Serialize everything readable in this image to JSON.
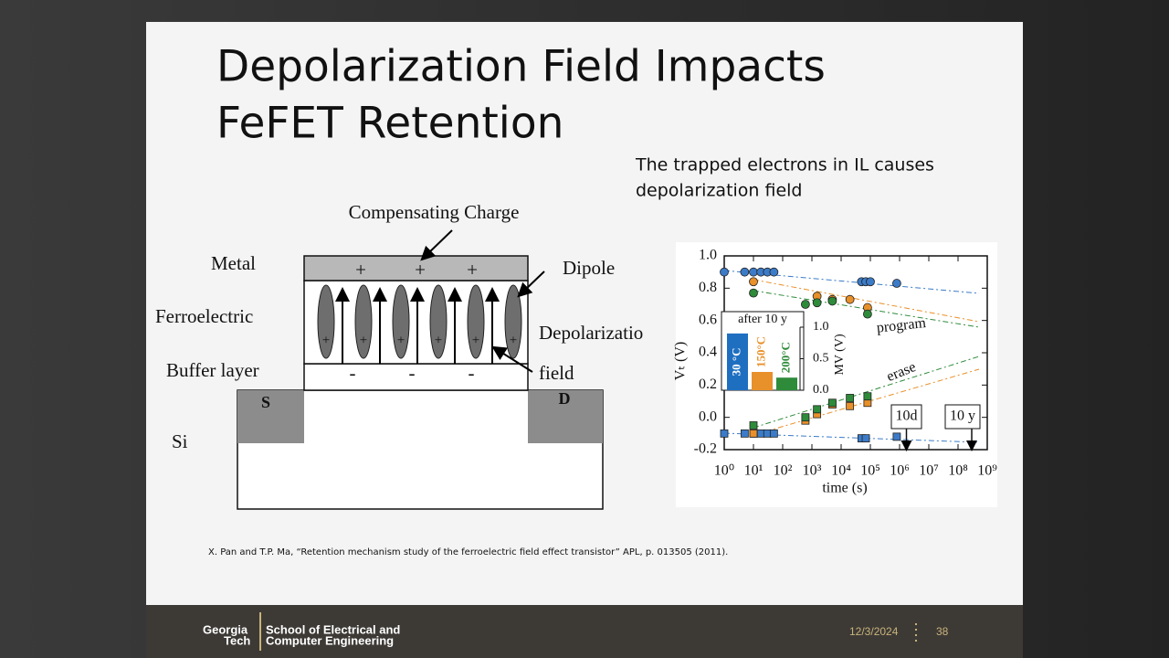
{
  "slide": {
    "title": [
      "Depolarization Field Impacts",
      "FeFET Retention"
    ],
    "note": [
      "The trapped electrons in IL causes",
      "depolarization field"
    ],
    "citation": "X. Pan and T.P. Ma, “Retention mechanism study of the ferroelectric field effect transistor” APL, p. 013505 (2011).",
    "footer": {
      "logo": [
        "Georgia",
        "Tech"
      ],
      "school": [
        "School of Electrical and",
        "Computer Engineering"
      ],
      "date": "12/3/2024",
      "page": "38"
    }
  },
  "diagram": {
    "compensating_charge": "Compensating Charge",
    "metal": "Metal",
    "dipole": "Dipole",
    "ferroelectric": "Ferroelectric",
    "depolarization": "Depolarizatio",
    "field": "field",
    "buffer_layer": "Buffer layer",
    "source": "S",
    "drain": "D",
    "silicon": "Si",
    "plus": "+",
    "minus": "-"
  },
  "chart_data": [
    {
      "type": "scatter",
      "xscale": "log",
      "x_label": "time (s)",
      "y_label": "Vₜ (V)",
      "xlim": [
        1,
        1000000000
      ],
      "ylim": [
        -0.2,
        1
      ],
      "xticks": [
        {
          "value": 1,
          "label": "10⁰"
        },
        {
          "value": 10,
          "label": "10¹"
        },
        {
          "value": 100,
          "label": "10²"
        },
        {
          "value": 1000,
          "label": "10³"
        },
        {
          "value": 10000,
          "label": "10⁴"
        },
        {
          "value": 100000,
          "label": "10⁵"
        },
        {
          "value": 1000000,
          "label": "10⁶"
        },
        {
          "value": 10000000,
          "label": "10⁷"
        },
        {
          "value": 100000000,
          "label": "10⁸"
        },
        {
          "value": 1000000000,
          "label": "10⁹"
        }
      ],
      "yticks": [
        -0.2,
        {
          "value": 0,
          "label": "0.0"
        },
        0.2,
        0.4,
        0.6,
        0.8,
        {
          "value": 1,
          "label": "1.0"
        }
      ],
      "annotations": {
        "program": "program",
        "erase": "erase",
        "ten_days": "10d",
        "ten_years": "10 y"
      },
      "series": [
        {
          "color": "#3b7bc8",
          "marker": "circle",
          "x": [
            1,
            5,
            10,
            18,
            30,
            50,
            50000,
            70000,
            100000,
            800000
          ],
          "values": [
            0.9,
            0.9,
            0.9,
            0.9,
            0.9,
            0.9,
            0.84,
            0.84,
            0.84,
            0.83
          ]
        },
        {
          "color": "#e8902a",
          "marker": "circle",
          "x": [
            10,
            1500,
            5000,
            20000,
            80000
          ],
          "values": [
            0.84,
            0.75,
            0.73,
            0.73,
            0.68
          ]
        },
        {
          "color": "#2e8b3a",
          "marker": "circle",
          "x": [
            10,
            600,
            1500,
            5000,
            80000
          ],
          "values": [
            0.77,
            0.7,
            0.71,
            0.72,
            0.64
          ]
        },
        {
          "color": "#3b7bc8",
          "marker": "square",
          "x": [
            1,
            5,
            10,
            18,
            30,
            50,
            50000,
            70000,
            800000
          ],
          "values": [
            -0.1,
            -0.1,
            -0.1,
            -0.1,
            -0.1,
            -0.1,
            -0.13,
            -0.13,
            -0.12
          ]
        },
        {
          "color": "#e8902a",
          "marker": "square",
          "x": [
            10,
            600,
            1500,
            5000,
            20000,
            80000
          ],
          "values": [
            -0.1,
            -0.02,
            0.02,
            0.08,
            0.07,
            0.09
          ]
        },
        {
          "color": "#2e8b3a",
          "marker": "square",
          "x": [
            10,
            600,
            1500,
            5000,
            20000,
            80000
          ],
          "values": [
            -0.05,
            0,
            0.05,
            0.09,
            0.12,
            0.13
          ]
        }
      ]
    },
    {
      "type": "bar",
      "title": "after 10 y",
      "y_label": "MV (V)",
      "categories": [
        "30 °C",
        "150°C",
        "200°C"
      ],
      "values": [
        0.9,
        0.29,
        0.2
      ],
      "colors": [
        "#1f6fc1",
        "#e8902a",
        "#2e8b3a"
      ],
      "label_colors": [
        "#ffffff",
        "#e8902a",
        "#2e8b3a"
      ],
      "ylim": [
        0,
        1
      ],
      "yticks": [
        {
          "value": 0,
          "label": "0.0"
        },
        0.5,
        {
          "value": 1,
          "label": "1.0"
        }
      ]
    }
  ]
}
